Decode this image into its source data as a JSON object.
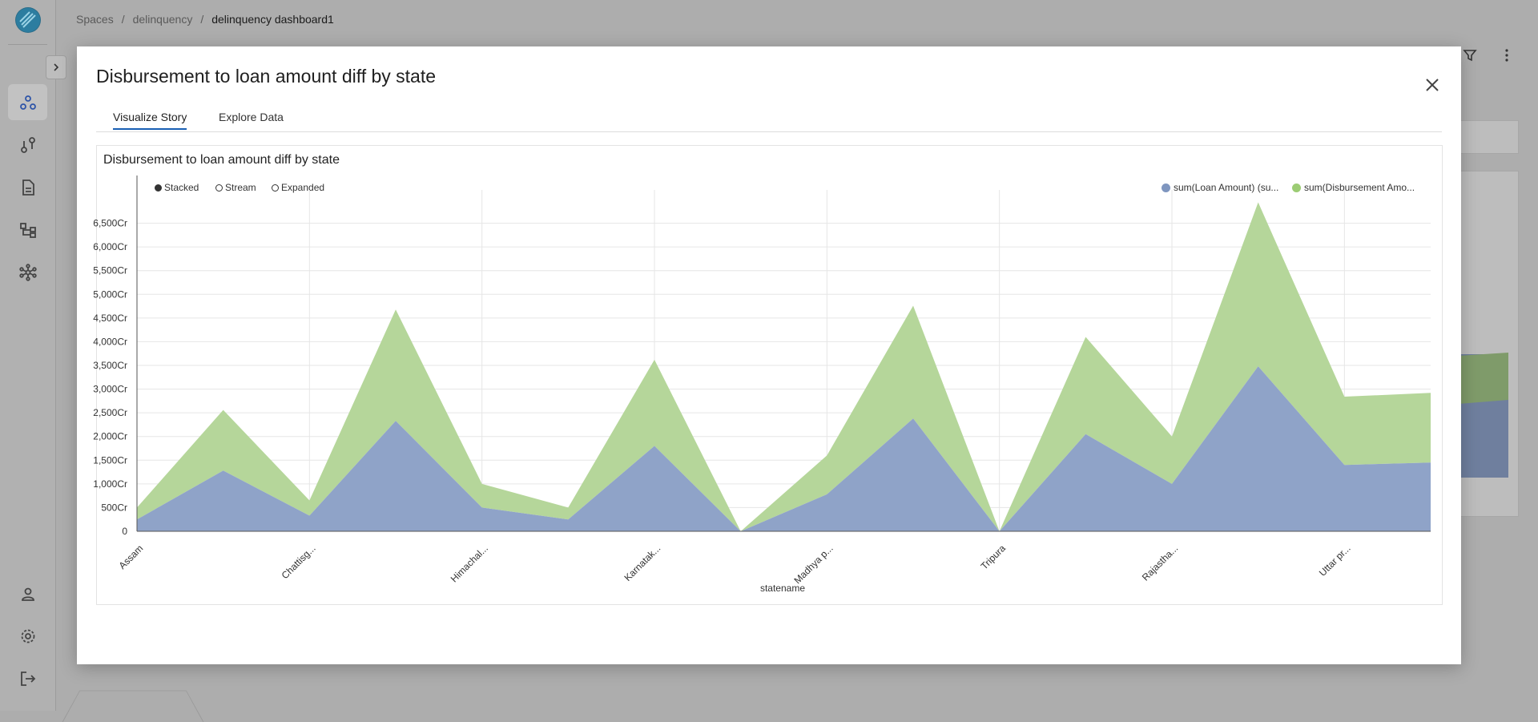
{
  "breadcrumb": [
    "Spaces",
    "delinquency",
    "delinquency dashboard1"
  ],
  "sidebar": {
    "icons": [
      "logo-icon",
      "spaces-icon",
      "pipelines-icon",
      "documents-icon",
      "hierarchy-icon",
      "network-icon",
      "user-icon",
      "settings-icon",
      "logout-icon"
    ],
    "active": "spaces-icon"
  },
  "modal": {
    "title": "Disbursement to loan amount diff by state",
    "tabs": [
      {
        "label": "Visualize Story",
        "active": true
      },
      {
        "label": "Explore Data",
        "active": false
      }
    ]
  },
  "chart_controls": {
    "modes": [
      {
        "label": "Stacked",
        "selected": true
      },
      {
        "label": "Stream",
        "selected": false
      },
      {
        "label": "Expanded",
        "selected": false
      }
    ]
  },
  "colors": {
    "loan": "#8fa3c8",
    "disbursement": "#b5d69a",
    "loan_legend": "#7f96bf",
    "disb_legend": "#9ccc74"
  },
  "chart_data": {
    "type": "area",
    "stacked": true,
    "title": "Disbursement to loan amount diff by state",
    "xlabel": "statename",
    "ylabel": "",
    "x_tick_labels": [
      "Assam",
      "Chattisg...",
      "Himachal...",
      "Karnatak...",
      "Madhya p...",
      "Tripura",
      "Rajastha...",
      "Uttar pr..."
    ],
    "y_tick_labels": [
      "0",
      "500Cr",
      "1,000Cr",
      "1,500Cr",
      "2,000Cr",
      "2,500Cr",
      "3,000Cr",
      "3,500Cr",
      "4,000Cr",
      "4,500Cr",
      "5,000Cr",
      "5,500Cr",
      "6,000Cr",
      "6,500Cr"
    ],
    "ylim": [
      0,
      7000
    ],
    "series": [
      {
        "name": "sum(Loan Amount) (su...",
        "values": [
          250,
          1280,
          330,
          2330,
          500,
          250,
          1800,
          0,
          780,
          2380,
          0,
          2050,
          1000,
          3480,
          1400,
          1450
        ]
      },
      {
        "name": "sum(Disbursement Amo...",
        "values": [
          250,
          1280,
          320,
          2350,
          500,
          250,
          1820,
          0,
          820,
          2380,
          0,
          2050,
          1000,
          3460,
          1440,
          1470
        ]
      }
    ],
    "grid": true,
    "legend_position": "top-right"
  }
}
